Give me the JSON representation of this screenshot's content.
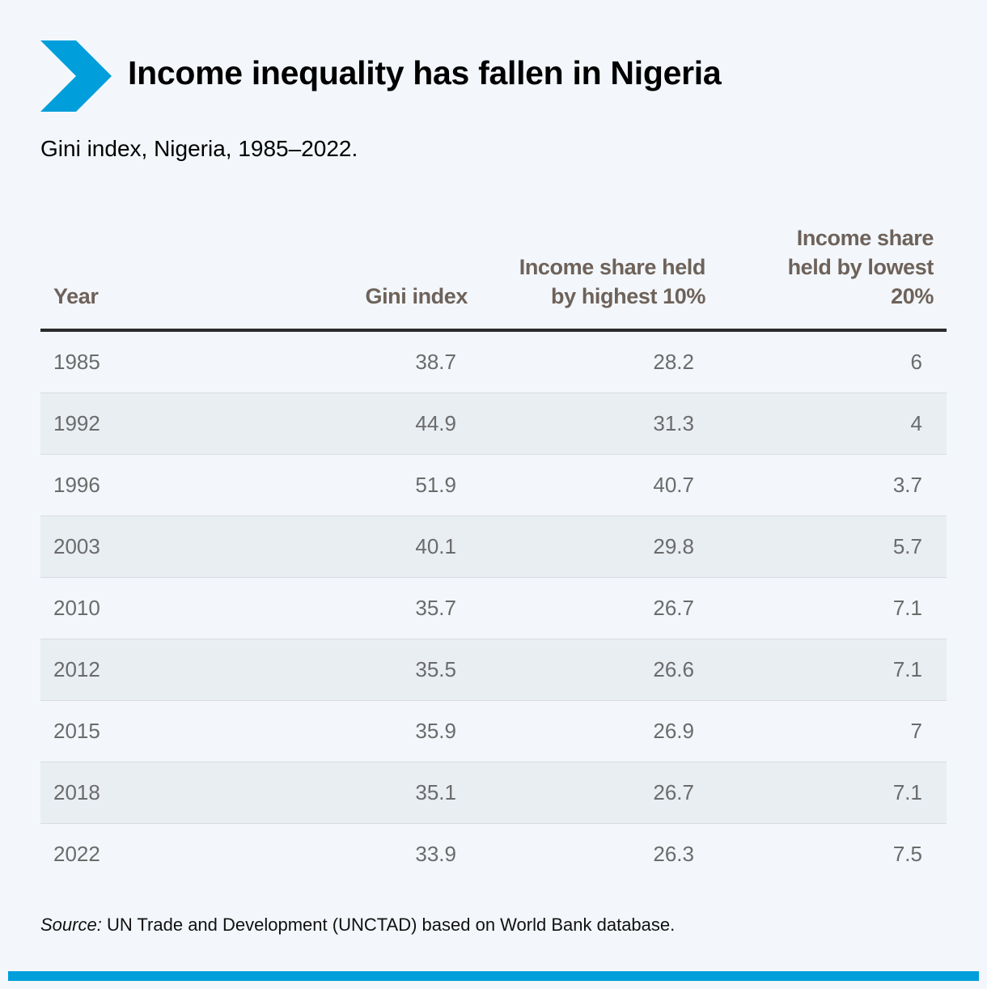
{
  "colors": {
    "accent": "#009edb",
    "background": "#f3f7fb",
    "header_text": "#6e625a",
    "cell_text": "#6b6b6b",
    "row_shade": "#e9eef3"
  },
  "icon": "chevron-right-icon",
  "title": "Income inequality has fallen in Nigeria",
  "subtitle": "Gini index, Nigeria, 1985–2022.",
  "source": {
    "label": "Source:",
    "text": " UN Trade and Development (UNCTAD) based on World Bank database."
  },
  "chart_data": {
    "type": "table",
    "title": "Income inequality has fallen in Nigeria",
    "subtitle": "Gini index, Nigeria, 1985–2022.",
    "columns": [
      "Year",
      "Gini index",
      "Income share held by highest 10%",
      "Income share held by lowest 20%"
    ],
    "rows": [
      [
        "1985",
        "38.7",
        "28.2",
        "6"
      ],
      [
        "1992",
        "44.9",
        "31.3",
        "4"
      ],
      [
        "1996",
        "51.9",
        "40.7",
        "3.7"
      ],
      [
        "2003",
        "40.1",
        "29.8",
        "5.7"
      ],
      [
        "2010",
        "35.7",
        "26.7",
        "7.1"
      ],
      [
        "2012",
        "35.5",
        "26.6",
        "7.1"
      ],
      [
        "2015",
        "35.9",
        "26.9",
        "7"
      ],
      [
        "2018",
        "35.1",
        "26.7",
        "7.1"
      ],
      [
        "2022",
        "33.9",
        "26.3",
        "7.5"
      ]
    ]
  }
}
